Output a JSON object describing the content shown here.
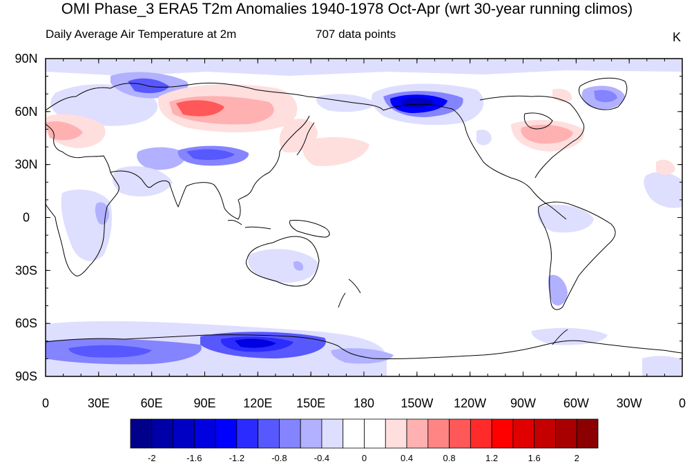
{
  "title": "OMI Phase_3 ERA5 T2m Anomalies 1940-1978 Oct-Apr (wrt 30-year running climos)",
  "subtitle_left": "Daily Average Air Temperature at 2m",
  "subtitle_center": "707 data points",
  "units": "K",
  "latitude_labels": [
    "90N",
    "60N",
    "30N",
    "0",
    "30S",
    "60S",
    "90S"
  ],
  "longitude_labels": [
    "0",
    "30E",
    "60E",
    "90E",
    "120E",
    "150E",
    "180",
    "150W",
    "120W",
    "90W",
    "60W",
    "30W",
    "0"
  ],
  "colorbar": {
    "colors": [
      "#00008b",
      "#0000a8",
      "#0000c4",
      "#0000e0",
      "#0000ff",
      "#2b2bff",
      "#5858ff",
      "#8484ff",
      "#b1b1ff",
      "#dedeff",
      "#ffffff",
      "#ffffff",
      "#ffdede",
      "#ffb1b1",
      "#ff8484",
      "#ff5858",
      "#ff2b2b",
      "#ff0000",
      "#e00000",
      "#c40000",
      "#a80000",
      "#8b0000"
    ],
    "tick_labels": [
      "-2",
      "-1.6",
      "-1.2",
      "-0.8",
      "-0.4",
      "0",
      "0.4",
      "0.8",
      "1.2",
      "1.6",
      "2"
    ]
  },
  "anomaly_regions": [
    {
      "name": "alaska-cold",
      "color": "#0000ff"
    },
    {
      "name": "siberia-warm",
      "color": "#ff5858"
    },
    {
      "name": "antarctica-cold",
      "color": "#2b2bff"
    },
    {
      "name": "eastern-us-warm",
      "color": "#ff8484"
    }
  ]
}
